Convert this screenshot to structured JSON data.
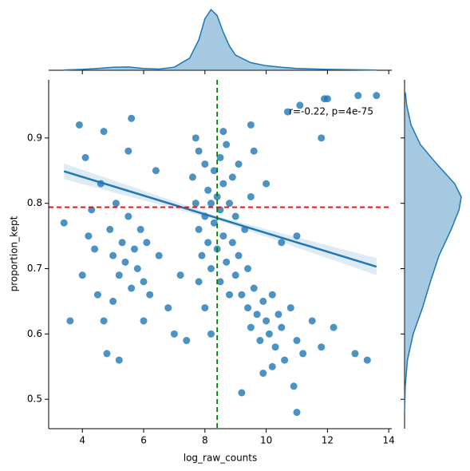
{
  "chart_data": {
    "type": "scatter",
    "xlabel": "log_raw_counts",
    "ylabel": "proportion_kept",
    "annotation": "r=-0.22, p=4e-75",
    "color": "#1f77b4",
    "xlim": [
      2.9,
      14.1
    ],
    "ylim": [
      0.455,
      0.989
    ],
    "xticks": [
      4,
      6,
      8,
      10,
      12,
      14
    ],
    "yticks": [
      0.5,
      0.6,
      0.7,
      0.8,
      0.9
    ],
    "vline": {
      "value": 8.4,
      "color": "#008000"
    },
    "hline": {
      "value": 0.794,
      "color": "#ff0000"
    },
    "fit": {
      "x": [
        3.4,
        8.5,
        13.6
      ],
      "y": [
        0.849,
        0.776,
        0.703
      ],
      "lower": [
        0.837,
        0.773,
        0.69
      ],
      "upper": [
        0.861,
        0.779,
        0.716
      ]
    },
    "x": [
      3.6,
      3.9,
      4.0,
      4.2,
      4.3,
      4.4,
      4.5,
      4.6,
      4.7,
      4.7,
      4.8,
      4.9,
      5.0,
      5.0,
      5.1,
      5.2,
      5.2,
      5.3,
      5.4,
      5.5,
      5.5,
      5.6,
      5.6,
      5.7,
      5.8,
      5.9,
      6.0,
      6.0,
      6.1,
      6.2,
      3.4,
      4.1,
      6.4,
      6.5,
      6.8,
      7.0,
      7.2,
      7.4,
      7.6,
      7.7,
      7.8,
      7.8,
      7.9,
      8.0,
      8.0,
      8.1,
      8.1,
      8.2,
      8.2,
      8.3,
      8.3,
      8.4,
      8.4,
      8.5,
      8.5,
      8.5,
      8.6,
      8.6,
      8.7,
      8.7,
      8.8,
      8.8,
      8.9,
      8.9,
      9.0,
      9.0,
      9.1,
      9.1,
      9.2,
      9.3,
      9.4,
      9.5,
      7.8,
      8.0,
      7.7,
      8.6,
      9.6,
      8.2,
      9.4,
      9.5,
      9.6,
      9.7,
      9.8,
      9.9,
      10.0,
      10.1,
      10.2,
      10.3,
      10.4,
      10.5,
      10.6,
      10.8,
      10.9,
      11.0,
      11.2,
      11.5,
      11.8,
      12.2,
      12.9,
      13.3,
      9.9,
      10.2,
      11.0,
      9.2,
      10.5,
      11.0,
      10.0,
      10.7,
      11.1,
      11.9,
      13.0,
      13.6,
      11.8,
      12.0,
      9.5
    ],
    "y": [
      0.62,
      0.92,
      0.69,
      0.75,
      0.79,
      0.73,
      0.66,
      0.83,
      0.91,
      0.62,
      0.57,
      0.76,
      0.72,
      0.65,
      0.8,
      0.56,
      0.69,
      0.74,
      0.71,
      0.88,
      0.78,
      0.93,
      0.67,
      0.73,
      0.7,
      0.76,
      0.62,
      0.68,
      0.74,
      0.66,
      0.77,
      0.87,
      0.85,
      0.72,
      0.64,
      0.6,
      0.69,
      0.59,
      0.84,
      0.8,
      0.76,
      0.88,
      0.72,
      0.86,
      0.78,
      0.82,
      0.74,
      0.8,
      0.7,
      0.85,
      0.77,
      0.81,
      0.73,
      0.87,
      0.79,
      0.68,
      0.83,
      0.75,
      0.89,
      0.71,
      0.8,
      0.66,
      0.84,
      0.74,
      0.78,
      0.69,
      0.86,
      0.72,
      0.66,
      0.76,
      0.7,
      0.81,
      0.68,
      0.64,
      0.9,
      0.91,
      0.88,
      0.6,
      0.64,
      0.61,
      0.67,
      0.63,
      0.59,
      0.65,
      0.62,
      0.6,
      0.66,
      0.58,
      0.63,
      0.61,
      0.56,
      0.64,
      0.52,
      0.59,
      0.57,
      0.62,
      0.58,
      0.61,
      0.57,
      0.56,
      0.54,
      0.55,
      0.48,
      0.51,
      0.74,
      0.75,
      0.83,
      0.94,
      0.95,
      0.96,
      0.965,
      0.965,
      0.9,
      0.96,
      0.92
    ],
    "x_marginal": {
      "x": [
        3.4,
        4,
        4.5,
        5,
        5.5,
        6,
        6.5,
        7,
        7.5,
        7.8,
        8.0,
        8.2,
        8.4,
        8.6,
        8.8,
        9,
        9.5,
        10,
        10.5,
        11,
        12,
        13,
        13.6
      ],
      "density": [
        0.002,
        0.006,
        0.012,
        0.02,
        0.022,
        0.012,
        0.008,
        0.02,
        0.08,
        0.2,
        0.34,
        0.4,
        0.36,
        0.25,
        0.16,
        0.1,
        0.05,
        0.03,
        0.02,
        0.012,
        0.006,
        0.003,
        0.001
      ]
    },
    "y_marginal": {
      "y": [
        0.48,
        0.52,
        0.56,
        0.6,
        0.64,
        0.68,
        0.72,
        0.76,
        0.79,
        0.81,
        0.83,
        0.86,
        0.89,
        0.92,
        0.95,
        0.97
      ],
      "density": [
        0,
        0.1,
        0.4,
        1.2,
        2.5,
        3.6,
        4.8,
        6.5,
        7.6,
        7.9,
        7.0,
        4.5,
        2.2,
        0.9,
        0.3,
        0.1
      ]
    }
  }
}
